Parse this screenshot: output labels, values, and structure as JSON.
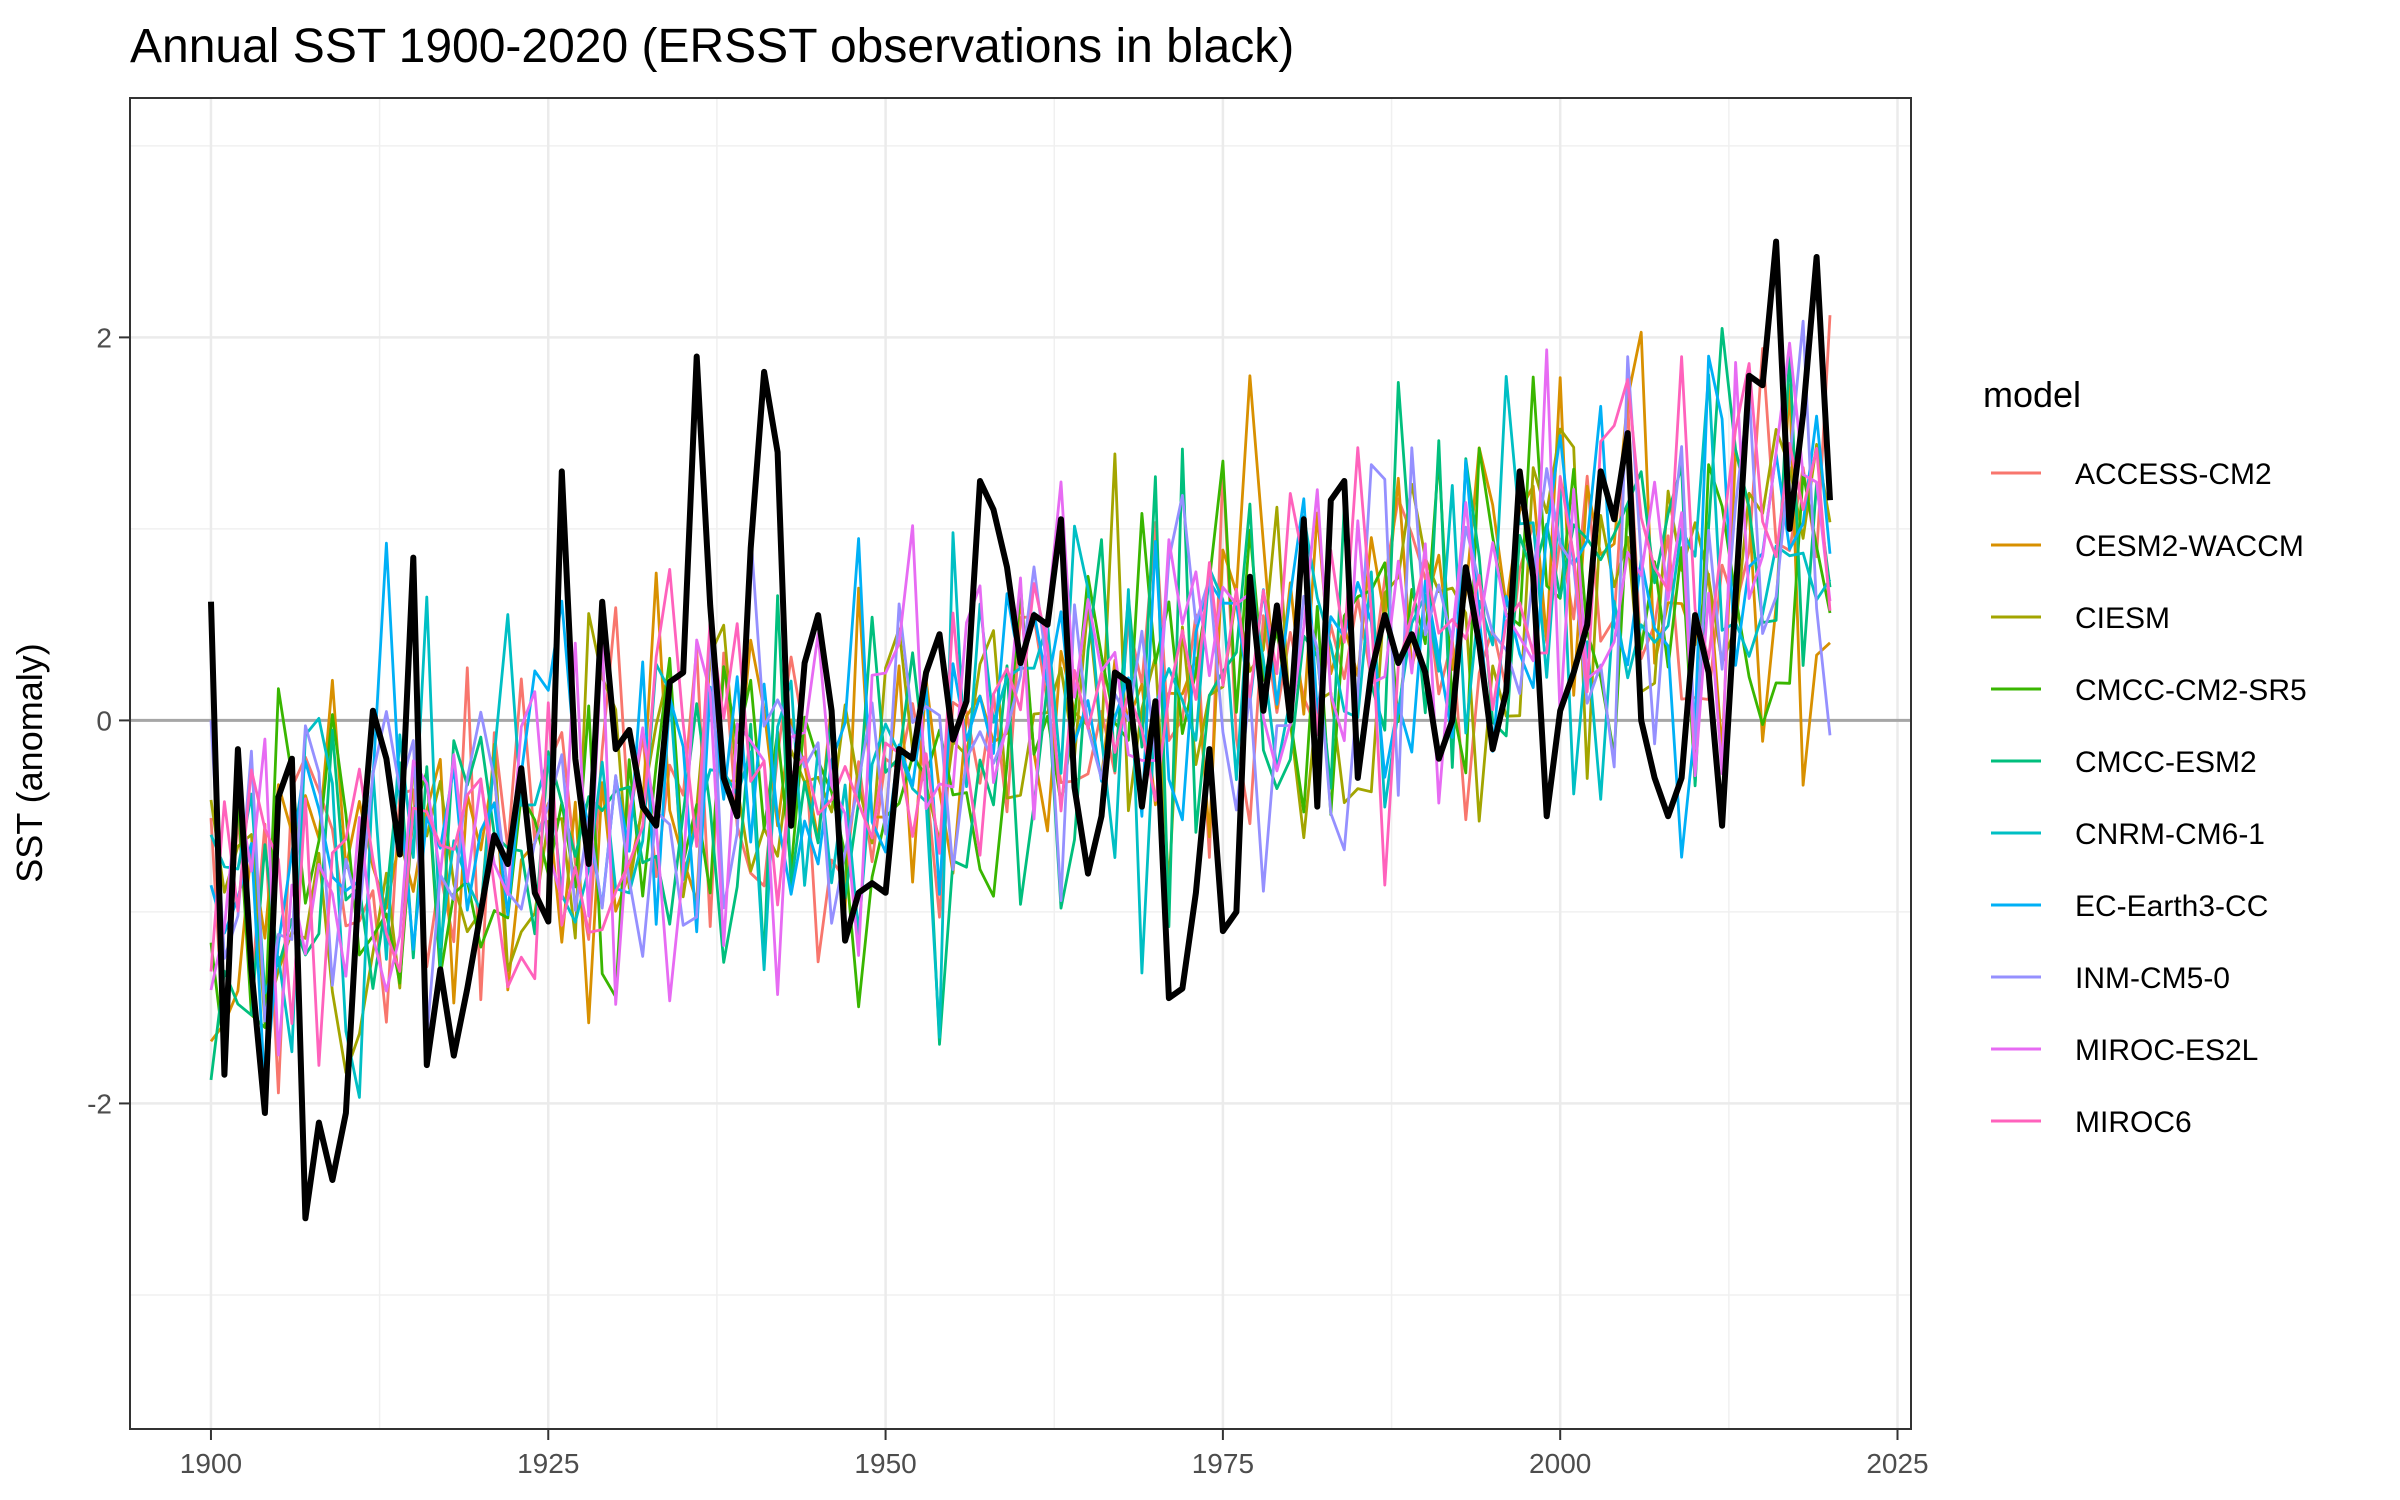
{
  "chart_data": {
    "type": "line",
    "title": "Annual SST 1900-2020 (ERSST observations in black)",
    "xlabel": "",
    "ylabel": "SST (anomaly)",
    "xlim": [
      1894,
      2026
    ],
    "ylim": [
      -3.7,
      3.25
    ],
    "x_ticks": [
      1900,
      1925,
      1950,
      1975,
      2000,
      2025
    ],
    "y_ticks": [
      -2,
      0,
      2
    ],
    "grid": true,
    "zero_line": true,
    "legend_title": "model",
    "legend_position": "right",
    "observations": {
      "color": "#000000",
      "points": [
        [
          1900,
          0.62
        ],
        [
          1901,
          -1.85
        ],
        [
          1902,
          -0.15
        ],
        [
          1903,
          -1.3
        ],
        [
          1904,
          -2.05
        ],
        [
          1905,
          -0.4
        ],
        [
          1906,
          -0.2
        ],
        [
          1907,
          -2.6
        ],
        [
          1908,
          -2.1
        ],
        [
          1909,
          -2.4
        ],
        [
          1910,
          -2.05
        ],
        [
          1911,
          -0.8
        ],
        [
          1912,
          0.05
        ],
        [
          1913,
          -0.2
        ],
        [
          1914,
          -0.7
        ],
        [
          1915,
          0.85
        ],
        [
          1916,
          -1.8
        ],
        [
          1917,
          -1.3
        ],
        [
          1918,
          -1.75
        ],
        [
          1919,
          -1.4
        ],
        [
          1920,
          -1.0
        ],
        [
          1921,
          -0.6
        ],
        [
          1922,
          -0.75
        ],
        [
          1923,
          -0.25
        ],
        [
          1924,
          -0.9
        ],
        [
          1925,
          -1.05
        ],
        [
          1926,
          1.3
        ],
        [
          1927,
          -0.2
        ],
        [
          1928,
          -0.75
        ],
        [
          1929,
          0.62
        ],
        [
          1930,
          -0.15
        ],
        [
          1931,
          -0.05
        ],
        [
          1932,
          -0.45
        ],
        [
          1933,
          -0.55
        ],
        [
          1934,
          0.2
        ],
        [
          1935,
          0.25
        ],
        [
          1936,
          1.9
        ],
        [
          1937,
          0.6
        ],
        [
          1938,
          -0.3
        ],
        [
          1939,
          -0.5
        ],
        [
          1940,
          0.9
        ],
        [
          1941,
          1.82
        ],
        [
          1942,
          1.4
        ],
        [
          1943,
          -0.55
        ],
        [
          1944,
          0.3
        ],
        [
          1945,
          0.55
        ],
        [
          1946,
          0.05
        ],
        [
          1947,
          -1.15
        ],
        [
          1948,
          -0.9
        ],
        [
          1949,
          -0.85
        ],
        [
          1950,
          -0.9
        ],
        [
          1951,
          -0.15
        ],
        [
          1952,
          -0.2
        ],
        [
          1953,
          0.25
        ],
        [
          1954,
          0.45
        ],
        [
          1955,
          -0.1
        ],
        [
          1956,
          0.1
        ],
        [
          1957,
          1.25
        ],
        [
          1958,
          1.1
        ],
        [
          1959,
          0.8
        ],
        [
          1960,
          0.3
        ],
        [
          1961,
          0.55
        ],
        [
          1962,
          0.5
        ],
        [
          1963,
          1.05
        ],
        [
          1964,
          -0.35
        ],
        [
          1965,
          -0.8
        ],
        [
          1966,
          -0.5
        ],
        [
          1967,
          0.25
        ],
        [
          1968,
          0.2
        ],
        [
          1969,
          -0.45
        ],
        [
          1970,
          0.1
        ],
        [
          1971,
          -1.45
        ],
        [
          1972,
          -1.4
        ],
        [
          1973,
          -0.9
        ],
        [
          1974,
          -0.15
        ],
        [
          1975,
          -1.1
        ],
        [
          1976,
          -1.0
        ],
        [
          1977,
          0.75
        ],
        [
          1978,
          0.05
        ],
        [
          1979,
          0.6
        ],
        [
          1980,
          0.0
        ],
        [
          1981,
          1.05
        ],
        [
          1982,
          -0.45
        ],
        [
          1983,
          1.15
        ],
        [
          1984,
          1.25
        ],
        [
          1985,
          -0.3
        ],
        [
          1986,
          0.25
        ],
        [
          1987,
          0.55
        ],
        [
          1988,
          0.3
        ],
        [
          1989,
          0.45
        ],
        [
          1990,
          0.25
        ],
        [
          1991,
          -0.2
        ],
        [
          1992,
          0.0
        ],
        [
          1993,
          0.8
        ],
        [
          1994,
          0.4
        ],
        [
          1995,
          -0.15
        ],
        [
          1996,
          0.15
        ],
        [
          1997,
          1.3
        ],
        [
          1998,
          0.75
        ],
        [
          1999,
          -0.5
        ],
        [
          2000,
          0.05
        ],
        [
          2001,
          0.25
        ],
        [
          2002,
          0.5
        ],
        [
          2003,
          1.3
        ],
        [
          2004,
          1.05
        ],
        [
          2005,
          1.5
        ],
        [
          2006,
          0.0
        ],
        [
          2007,
          -0.3
        ],
        [
          2008,
          -0.5
        ],
        [
          2009,
          -0.3
        ],
        [
          2010,
          0.55
        ],
        [
          2011,
          0.25
        ],
        [
          2012,
          -0.55
        ],
        [
          2013,
          0.65
        ],
        [
          2014,
          1.8
        ],
        [
          2015,
          1.75
        ],
        [
          2016,
          2.5
        ],
        [
          2017,
          1.0
        ],
        [
          2018,
          1.6
        ],
        [
          2019,
          2.42
        ],
        [
          2020,
          1.15
        ]
      ]
    },
    "series": [
      {
        "name": "ACCESS-CM2",
        "color": "#F8766D"
      },
      {
        "name": "CESM2-WACCM",
        "color": "#D89000"
      },
      {
        "name": "CIESM",
        "color": "#A3A500"
      },
      {
        "name": "CMCC-CM2-SR5",
        "color": "#39B600"
      },
      {
        "name": "CMCC-ESM2",
        "color": "#00BF7D"
      },
      {
        "name": "CNRM-CM6-1",
        "color": "#00BFC4"
      },
      {
        "name": "EC-Earth3-CC",
        "color": "#00B0F6"
      },
      {
        "name": "INM-CM5-0",
        "color": "#9590FF"
      },
      {
        "name": "MIROC-ES2L",
        "color": "#E76BF3"
      },
      {
        "name": "MIROC6",
        "color": "#FF62BC"
      }
    ]
  }
}
